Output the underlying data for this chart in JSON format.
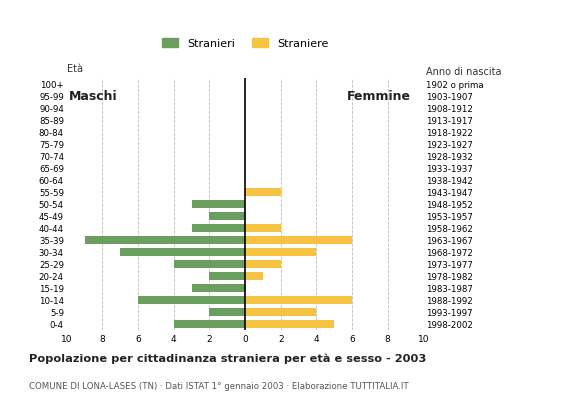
{
  "age_groups": [
    "0-4",
    "5-9",
    "10-14",
    "15-19",
    "20-24",
    "25-29",
    "30-34",
    "35-39",
    "40-44",
    "45-49",
    "50-54",
    "55-59",
    "60-64",
    "65-69",
    "70-74",
    "75-79",
    "80-84",
    "85-89",
    "90-94",
    "95-99",
    "100+"
  ],
  "birth_years": [
    "1998-2002",
    "1993-1997",
    "1988-1992",
    "1983-1987",
    "1978-1982",
    "1973-1977",
    "1968-1972",
    "1963-1967",
    "1958-1962",
    "1953-1957",
    "1948-1952",
    "1943-1947",
    "1938-1942",
    "1933-1937",
    "1928-1932",
    "1923-1927",
    "1918-1922",
    "1913-1917",
    "1908-1912",
    "1903-1907",
    "1902 o prima"
  ],
  "males": [
    4,
    2,
    6,
    3,
    2,
    4,
    7,
    9,
    3,
    2,
    3,
    0,
    0,
    0,
    0,
    0,
    0,
    0,
    0,
    0,
    0
  ],
  "females": [
    5,
    4,
    6,
    0,
    1,
    2,
    4,
    6,
    2,
    0,
    0,
    2,
    0,
    0,
    0,
    0,
    0,
    0,
    0,
    0,
    0
  ],
  "male_color": "#6a9e5e",
  "female_color": "#f5c242",
  "title": "Popolazione per cittadinanza straniera per età e sesso - 2003",
  "subtitle": "COMUNE DI LONA-LASES (TN) · Dati ISTAT 1° gennaio 2003 · Elaborazione TUTTITALIA.IT",
  "legend_male": "Stranieri",
  "legend_female": "Straniere",
  "label_maschi": "Maschi",
  "label_femmine": "Femmine",
  "label_eta": "Età",
  "label_anno": "Anno di nascita",
  "xlim": 10,
  "background_color": "#ffffff",
  "grid_color": "#bbbbbb"
}
